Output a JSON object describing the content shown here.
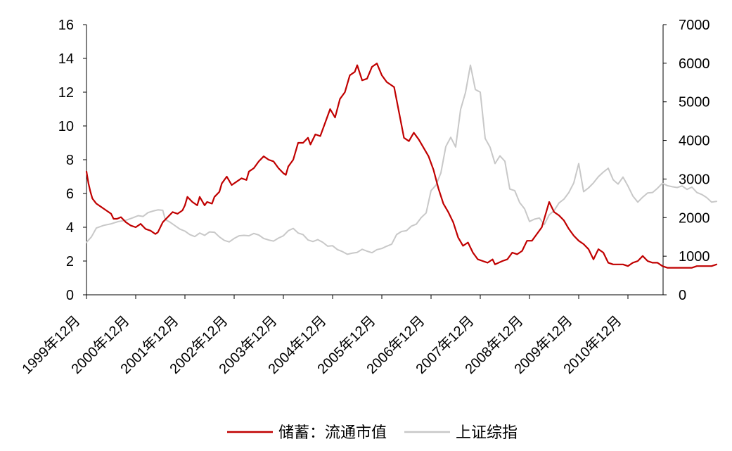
{
  "chart_data": {
    "type": "line",
    "title": "",
    "x_categories": [
      "1999年12月",
      "2000年12月",
      "2001年12月",
      "2002年12月",
      "2003年12月",
      "2004年12月",
      "2005年12月",
      "2006年12月",
      "2007年12月",
      "2008年12月",
      "2009年12月",
      "2010年12月"
    ],
    "y_left": {
      "min": 0,
      "max": 16,
      "ticks": [
        "0",
        "2",
        "4",
        "6",
        "8",
        "10",
        "12",
        "14",
        "16"
      ]
    },
    "y_right": {
      "min": 0,
      "max": 7000,
      "ticks": [
        "0",
        "1000",
        "2000",
        "3000",
        "4000",
        "5000",
        "6000",
        "7000"
      ]
    },
    "grid": false,
    "legend_position": "bottom",
    "series": [
      {
        "name": "储蓄：流通市值",
        "axis": "left",
        "color": "#c00000",
        "points": [
          [
            0,
            7.3
          ],
          [
            0.04,
            6.6
          ],
          [
            0.08,
            6.1
          ],
          [
            0.12,
            5.7
          ],
          [
            0.2,
            5.4
          ],
          [
            0.3,
            5.2
          ],
          [
            0.4,
            5.0
          ],
          [
            0.5,
            4.8
          ],
          [
            0.55,
            4.5
          ],
          [
            0.62,
            4.5
          ],
          [
            0.7,
            4.6
          ],
          [
            0.8,
            4.3
          ],
          [
            0.9,
            4.1
          ],
          [
            1.0,
            4.0
          ],
          [
            1.1,
            4.2
          ],
          [
            1.2,
            3.9
          ],
          [
            1.3,
            3.8
          ],
          [
            1.4,
            3.6
          ],
          [
            1.45,
            3.7
          ],
          [
            1.55,
            4.3
          ],
          [
            1.65,
            4.6
          ],
          [
            1.75,
            4.9
          ],
          [
            1.85,
            4.8
          ],
          [
            1.95,
            5.0
          ],
          [
            2.0,
            5.3
          ],
          [
            2.05,
            5.8
          ],
          [
            2.15,
            5.5
          ],
          [
            2.25,
            5.3
          ],
          [
            2.3,
            5.8
          ],
          [
            2.4,
            5.3
          ],
          [
            2.45,
            5.5
          ],
          [
            2.55,
            5.4
          ],
          [
            2.6,
            5.8
          ],
          [
            2.7,
            6.1
          ],
          [
            2.75,
            6.6
          ],
          [
            2.85,
            7.0
          ],
          [
            2.95,
            6.5
          ],
          [
            3.05,
            6.7
          ],
          [
            3.15,
            6.9
          ],
          [
            3.25,
            6.8
          ],
          [
            3.3,
            7.3
          ],
          [
            3.4,
            7.5
          ],
          [
            3.5,
            7.9
          ],
          [
            3.6,
            8.2
          ],
          [
            3.7,
            8.0
          ],
          [
            3.8,
            7.9
          ],
          [
            3.9,
            7.5
          ],
          [
            4.0,
            7.2
          ],
          [
            4.05,
            7.1
          ],
          [
            4.1,
            7.6
          ],
          [
            4.2,
            8.0
          ],
          [
            4.3,
            9.0
          ],
          [
            4.4,
            9.0
          ],
          [
            4.5,
            9.3
          ],
          [
            4.55,
            8.9
          ],
          [
            4.65,
            9.5
          ],
          [
            4.75,
            9.4
          ],
          [
            4.85,
            10.2
          ],
          [
            4.95,
            11.0
          ],
          [
            5.05,
            10.5
          ],
          [
            5.15,
            11.6
          ],
          [
            5.25,
            12.0
          ],
          [
            5.35,
            13.0
          ],
          [
            5.45,
            13.2
          ],
          [
            5.5,
            13.6
          ],
          [
            5.6,
            12.7
          ],
          [
            5.7,
            12.8
          ],
          [
            5.8,
            13.5
          ],
          [
            5.9,
            13.7
          ],
          [
            6.0,
            13.0
          ],
          [
            6.1,
            12.6
          ],
          [
            6.2,
            12.4
          ],
          [
            6.25,
            12.3
          ],
          [
            6.35,
            10.8
          ],
          [
            6.45,
            9.3
          ],
          [
            6.55,
            9.1
          ],
          [
            6.65,
            9.6
          ],
          [
            6.75,
            9.2
          ],
          [
            6.85,
            8.7
          ],
          [
            6.95,
            8.2
          ],
          [
            7.05,
            7.4
          ],
          [
            7.15,
            6.3
          ],
          [
            7.25,
            5.4
          ],
          [
            7.35,
            4.9
          ],
          [
            7.45,
            4.3
          ],
          [
            7.55,
            3.4
          ],
          [
            7.65,
            2.9
          ],
          [
            7.75,
            3.1
          ],
          [
            7.85,
            2.5
          ],
          [
            7.95,
            2.1
          ],
          [
            8.05,
            2.0
          ],
          [
            8.15,
            1.9
          ],
          [
            8.25,
            2.1
          ],
          [
            8.3,
            1.8
          ],
          [
            8.45,
            2.0
          ],
          [
            8.55,
            2.1
          ],
          [
            8.65,
            2.5
          ],
          [
            8.75,
            2.4
          ],
          [
            8.85,
            2.6
          ],
          [
            8.95,
            3.2
          ],
          [
            9.05,
            3.2
          ],
          [
            9.15,
            3.6
          ],
          [
            9.25,
            4.0
          ],
          [
            9.3,
            4.5
          ],
          [
            9.4,
            5.5
          ],
          [
            9.5,
            4.9
          ],
          [
            9.6,
            4.7
          ],
          [
            9.7,
            4.4
          ],
          [
            9.8,
            3.9
          ],
          [
            9.9,
            3.5
          ],
          [
            10.0,
            3.2
          ],
          [
            10.1,
            3.0
          ],
          [
            10.2,
            2.7
          ],
          [
            10.3,
            2.1
          ],
          [
            10.4,
            2.7
          ],
          [
            10.5,
            2.5
          ],
          [
            10.6,
            1.9
          ],
          [
            10.7,
            1.8
          ],
          [
            10.8,
            1.8
          ],
          [
            10.9,
            1.8
          ],
          [
            11.0,
            1.7
          ],
          [
            11.1,
            1.9
          ],
          [
            11.2,
            2.0
          ],
          [
            11.3,
            2.3
          ],
          [
            11.4,
            2.0
          ],
          [
            11.5,
            1.9
          ],
          [
            11.6,
            1.9
          ],
          [
            11.7,
            1.7
          ],
          [
            11.8,
            1.6
          ],
          [
            11.9,
            1.6
          ],
          [
            12.0,
            1.6
          ],
          [
            12.1,
            1.6
          ],
          [
            12.2,
            1.6
          ],
          [
            12.3,
            1.6
          ],
          [
            12.4,
            1.7
          ],
          [
            12.5,
            1.7
          ],
          [
            12.6,
            1.7
          ],
          [
            12.7,
            1.7
          ],
          [
            12.8,
            1.8
          ]
        ]
      },
      {
        "name": "上证综指",
        "axis": "right",
        "color": "#c8c8c8",
        "points": [
          [
            0,
            1360
          ],
          [
            0.1,
            1500
          ],
          [
            0.2,
            1730
          ],
          [
            0.35,
            1800
          ],
          [
            0.5,
            1840
          ],
          [
            0.65,
            1900
          ],
          [
            0.8,
            1930
          ],
          [
            0.95,
            2000
          ],
          [
            1.05,
            2050
          ],
          [
            1.15,
            2030
          ],
          [
            1.25,
            2130
          ],
          [
            1.35,
            2170
          ],
          [
            1.45,
            2200
          ],
          [
            1.55,
            2190
          ],
          [
            1.6,
            1950
          ],
          [
            1.7,
            1880
          ],
          [
            1.8,
            1790
          ],
          [
            1.9,
            1700
          ],
          [
            2.0,
            1650
          ],
          [
            2.1,
            1560
          ],
          [
            2.2,
            1510
          ],
          [
            2.3,
            1600
          ],
          [
            2.4,
            1540
          ],
          [
            2.5,
            1630
          ],
          [
            2.6,
            1620
          ],
          [
            2.7,
            1500
          ],
          [
            2.8,
            1410
          ],
          [
            2.9,
            1370
          ],
          [
            3.0,
            1460
          ],
          [
            3.1,
            1530
          ],
          [
            3.2,
            1540
          ],
          [
            3.3,
            1530
          ],
          [
            3.4,
            1590
          ],
          [
            3.5,
            1550
          ],
          [
            3.6,
            1460
          ],
          [
            3.7,
            1420
          ],
          [
            3.8,
            1390
          ],
          [
            3.9,
            1470
          ],
          [
            4.0,
            1530
          ],
          [
            4.1,
            1660
          ],
          [
            4.2,
            1720
          ],
          [
            4.3,
            1600
          ],
          [
            4.4,
            1560
          ],
          [
            4.5,
            1420
          ],
          [
            4.6,
            1380
          ],
          [
            4.7,
            1430
          ],
          [
            4.8,
            1360
          ],
          [
            4.9,
            1260
          ],
          [
            5.0,
            1270
          ],
          [
            5.1,
            1170
          ],
          [
            5.2,
            1120
          ],
          [
            5.3,
            1050
          ],
          [
            5.4,
            1080
          ],
          [
            5.5,
            1100
          ],
          [
            5.6,
            1180
          ],
          [
            5.7,
            1130
          ],
          [
            5.8,
            1090
          ],
          [
            5.9,
            1170
          ],
          [
            6.0,
            1200
          ],
          [
            6.1,
            1260
          ],
          [
            6.2,
            1310
          ],
          [
            6.3,
            1560
          ],
          [
            6.4,
            1640
          ],
          [
            6.5,
            1660
          ],
          [
            6.6,
            1780
          ],
          [
            6.7,
            1830
          ],
          [
            6.8,
            2000
          ],
          [
            6.9,
            2120
          ],
          [
            7.0,
            2700
          ],
          [
            7.1,
            2840
          ],
          [
            7.2,
            3160
          ],
          [
            7.3,
            3840
          ],
          [
            7.4,
            4080
          ],
          [
            7.5,
            3830
          ],
          [
            7.6,
            4800
          ],
          [
            7.7,
            5240
          ],
          [
            7.8,
            5950
          ],
          [
            7.9,
            5320
          ],
          [
            8.0,
            5250
          ],
          [
            8.1,
            4050
          ],
          [
            8.2,
            3820
          ],
          [
            8.3,
            3400
          ],
          [
            8.4,
            3600
          ],
          [
            8.5,
            3460
          ],
          [
            8.6,
            2740
          ],
          [
            8.7,
            2700
          ],
          [
            8.8,
            2390
          ],
          [
            8.9,
            2230
          ],
          [
            9.0,
            1900
          ],
          [
            9.1,
            1960
          ],
          [
            9.2,
            1990
          ],
          [
            9.3,
            1820
          ],
          [
            9.4,
            2070
          ],
          [
            9.5,
            2180
          ],
          [
            9.6,
            2380
          ],
          [
            9.7,
            2480
          ],
          [
            9.8,
            2650
          ],
          [
            9.9,
            2900
          ],
          [
            10.0,
            3400
          ],
          [
            10.1,
            2670
          ],
          [
            10.2,
            2770
          ],
          [
            10.3,
            2900
          ],
          [
            10.4,
            3060
          ],
          [
            10.5,
            3180
          ],
          [
            10.6,
            3280
          ],
          [
            10.7,
            2980
          ],
          [
            10.8,
            2870
          ],
          [
            10.9,
            3050
          ],
          [
            11.0,
            2820
          ],
          [
            11.1,
            2560
          ],
          [
            11.2,
            2400
          ],
          [
            11.3,
            2530
          ],
          [
            11.4,
            2640
          ],
          [
            11.5,
            2650
          ],
          [
            11.6,
            2760
          ],
          [
            11.7,
            2890
          ],
          [
            11.8,
            2830
          ],
          [
            11.9,
            2800
          ],
          [
            12.0,
            2780
          ],
          [
            12.1,
            2820
          ],
          [
            12.2,
            2730
          ],
          [
            12.3,
            2790
          ],
          [
            12.4,
            2650
          ],
          [
            12.5,
            2600
          ],
          [
            12.6,
            2520
          ],
          [
            12.7,
            2400
          ],
          [
            12.8,
            2420
          ]
        ]
      }
    ]
  }
}
